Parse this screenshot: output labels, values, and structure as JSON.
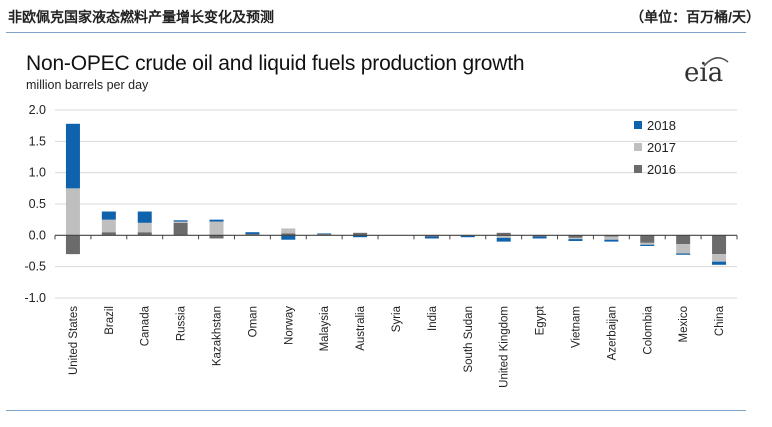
{
  "header": {
    "left": "非欧佩克国家液态燃料产量增长变化及预测",
    "right": "（单位：百万桶/天）"
  },
  "logo": {
    "text": "eia"
  },
  "chart_data": {
    "type": "bar",
    "stacked": true,
    "title": "Non-OPEC crude oil and liquid fuels production growth",
    "ylabel": "million barrels per day",
    "xlabel": "",
    "ylim": [
      -1.0,
      2.0
    ],
    "yticks": [
      2.0,
      1.5,
      1.0,
      0.5,
      0.0,
      -0.5,
      -1.0
    ],
    "ytick_labels": [
      "2.0",
      "1.5",
      "1.0",
      "0.5",
      "0.0",
      "-0.5",
      "-1.0"
    ],
    "legend_position": "top-right",
    "categories": [
      "United States",
      "Brazil",
      "Canada",
      "Russia",
      "Kazakhstan",
      "Oman",
      "Norway",
      "Malaysia",
      "Australia",
      "Syria",
      "India",
      "South Sudan",
      "United Kingdom",
      "Egypt",
      "Vietnam",
      "Azerbaijan",
      "Colombia",
      "Mexico",
      "China"
    ],
    "series": [
      {
        "name": "2016",
        "color": "#6b6b6b",
        "values": [
          -0.3,
          0.05,
          0.05,
          0.2,
          -0.05,
          0.02,
          0.03,
          0.02,
          0.04,
          0.0,
          -0.02,
          -0.01,
          0.04,
          -0.02,
          -0.04,
          -0.02,
          -0.12,
          -0.14,
          -0.3
        ]
      },
      {
        "name": "2017",
        "color": "#bfbfbf",
        "values": [
          0.75,
          0.2,
          0.15,
          0.02,
          0.22,
          0.0,
          0.08,
          0.0,
          0.0,
          0.0,
          0.0,
          0.0,
          -0.04,
          0.0,
          -0.02,
          -0.05,
          -0.03,
          -0.15,
          -0.12
        ]
      },
      {
        "name": "2018",
        "color": "#0f62ac",
        "values": [
          1.03,
          0.13,
          0.18,
          0.02,
          0.03,
          0.03,
          -0.07,
          0.01,
          -0.03,
          0.0,
          -0.03,
          -0.02,
          -0.06,
          -0.03,
          -0.03,
          -0.03,
          -0.02,
          -0.02,
          -0.05
        ]
      }
    ]
  }
}
